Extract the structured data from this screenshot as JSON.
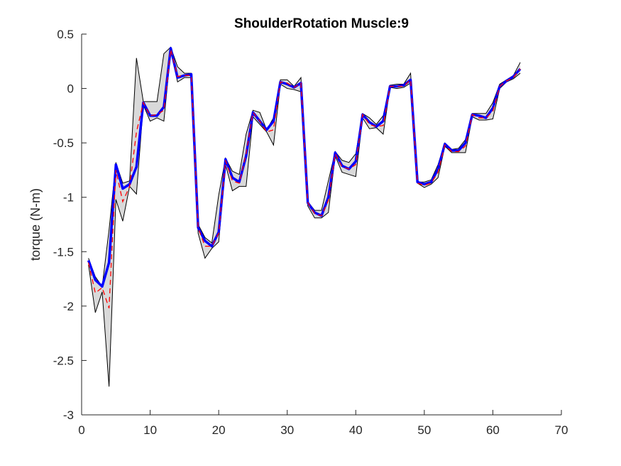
{
  "chart_data": {
    "type": "line",
    "title": "ShoulderRotation Muscle:9",
    "xlabel": "",
    "ylabel": "torque (N-m)",
    "xlim": [
      0,
      70
    ],
    "ylim": [
      -3,
      0.5
    ],
    "xticks": [
      "0",
      "10",
      "20",
      "30",
      "40",
      "50",
      "60",
      "70"
    ],
    "yticks": [
      "-3",
      "-2.5",
      "-2",
      "-1.5",
      "-1",
      "-0.5",
      "0",
      "0.5"
    ],
    "x": [
      1,
      2,
      3,
      4,
      5,
      6,
      7,
      8,
      9,
      10,
      11,
      12,
      13,
      14,
      15,
      16,
      17,
      18,
      19,
      20,
      21,
      22,
      23,
      24,
      25,
      26,
      27,
      28,
      29,
      30,
      31,
      32,
      33,
      34,
      35,
      36,
      37,
      38,
      39,
      40,
      41,
      42,
      43,
      44,
      45,
      46,
      47,
      48,
      49,
      50,
      51,
      52,
      53,
      54,
      55,
      56,
      57,
      58,
      59,
      60,
      61,
      62,
      63,
      64
    ],
    "series": [
      {
        "role": "band",
        "color": "#000000",
        "fill": "#d9d9d9",
        "upper": [
          -1.56,
          -1.73,
          -1.82,
          -1.3,
          -0.68,
          -0.87,
          -0.85,
          0.28,
          -0.12,
          -0.12,
          -0.12,
          0.32,
          0.38,
          0.2,
          0.14,
          0.14,
          -1.25,
          -1.37,
          -1.42,
          -0.98,
          -0.64,
          -0.76,
          -0.79,
          -0.42,
          -0.2,
          -0.22,
          -0.38,
          -0.27,
          0.08,
          0.08,
          0.02,
          0.1,
          -1.04,
          -1.12,
          -1.12,
          -0.85,
          -0.58,
          -0.66,
          -0.68,
          -0.6,
          -0.23,
          -0.27,
          -0.33,
          -0.25,
          0.03,
          0.04,
          0.04,
          0.14,
          -0.86,
          -0.86,
          -0.84,
          -0.7,
          -0.5,
          -0.56,
          -0.55,
          -0.47,
          -0.23,
          -0.23,
          -0.23,
          -0.13,
          0.04,
          0.08,
          0.12,
          0.24
        ],
        "lower": [
          -1.62,
          -2.06,
          -1.87,
          -2.74,
          -1.02,
          -1.22,
          -0.9,
          -0.97,
          -0.15,
          -0.3,
          -0.27,
          -0.3,
          0.34,
          0.06,
          0.1,
          0.1,
          -1.33,
          -1.56,
          -1.47,
          -1.41,
          -0.7,
          -0.94,
          -0.9,
          -0.9,
          -0.26,
          -0.33,
          -0.4,
          -0.52,
          0.04,
          0.0,
          -0.01,
          -0.03,
          -1.08,
          -1.19,
          -1.19,
          -1.14,
          -0.62,
          -0.77,
          -0.79,
          -0.81,
          -0.27,
          -0.37,
          -0.36,
          -0.42,
          0.01,
          0.0,
          0.01,
          0.05,
          -0.87,
          -0.91,
          -0.88,
          -0.82,
          -0.53,
          -0.59,
          -0.59,
          -0.59,
          -0.26,
          -0.29,
          -0.29,
          -0.28,
          0.0,
          0.06,
          0.09,
          0.14
        ]
      },
      {
        "role": "dashed",
        "color": "#ff0000",
        "values": [
          -1.6,
          -1.88,
          -1.83,
          -2.02,
          -0.75,
          -1.04,
          -0.9,
          -0.4,
          -0.13,
          -0.25,
          -0.24,
          -0.2,
          0.36,
          0.11,
          0.12,
          0.12,
          -1.28,
          -1.45,
          -1.45,
          -1.33,
          -0.66,
          -0.85,
          -0.87,
          -0.6,
          -0.22,
          -0.3,
          -0.4,
          -0.38,
          0.06,
          0.05,
          0.01,
          0.05,
          -1.05,
          -1.15,
          -1.17,
          -1.03,
          -0.6,
          -0.72,
          -0.74,
          -0.7,
          -0.24,
          -0.33,
          -0.35,
          -0.34,
          0.02,
          0.02,
          0.02,
          0.08,
          -0.87,
          -0.89,
          -0.87,
          -0.77,
          -0.52,
          -0.58,
          -0.58,
          -0.53,
          -0.24,
          -0.27,
          -0.27,
          -0.21,
          0.02,
          0.07,
          0.1,
          0.18
        ]
      },
      {
        "role": "mean",
        "color": "#0000ff",
        "values": [
          -1.58,
          -1.76,
          -1.82,
          -1.6,
          -0.7,
          -0.92,
          -0.88,
          -0.72,
          -0.13,
          -0.25,
          -0.25,
          -0.17,
          0.37,
          0.1,
          0.12,
          0.13,
          -1.28,
          -1.4,
          -1.45,
          -1.32,
          -0.65,
          -0.82,
          -0.86,
          -0.62,
          -0.22,
          -0.3,
          -0.38,
          -0.3,
          0.06,
          0.04,
          0.01,
          0.05,
          -1.05,
          -1.14,
          -1.17,
          -1.0,
          -0.59,
          -0.71,
          -0.74,
          -0.67,
          -0.24,
          -0.31,
          -0.35,
          -0.3,
          0.02,
          0.02,
          0.03,
          0.08,
          -0.86,
          -0.88,
          -0.86,
          -0.74,
          -0.51,
          -0.57,
          -0.57,
          -0.5,
          -0.24,
          -0.25,
          -0.27,
          -0.18,
          0.02,
          0.07,
          0.11,
          0.18
        ]
      }
    ]
  }
}
